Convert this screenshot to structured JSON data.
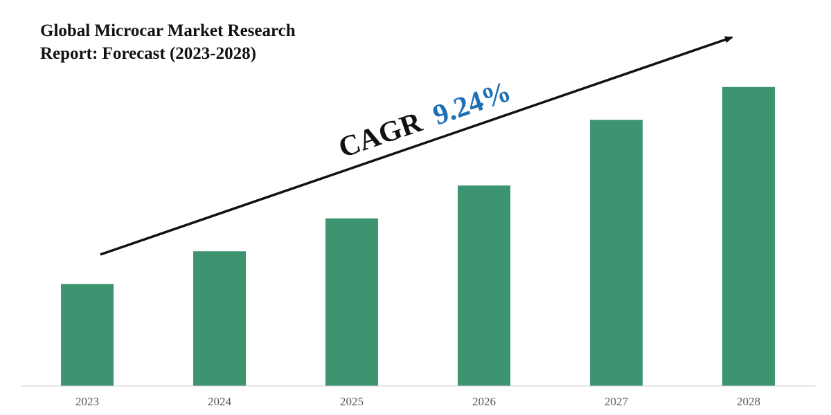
{
  "chart_data": {
    "type": "bar",
    "title": "Global Microcar Market Research Report: Forecast (2023-2028)",
    "categories": [
      "2023",
      "2024",
      "2025",
      "2026",
      "2027",
      "2028"
    ],
    "values": [
      31,
      41,
      51,
      61,
      81,
      91
    ],
    "ylim": [
      0,
      100
    ],
    "xlabel": "",
    "ylabel": "",
    "grid": false,
    "annotation": {
      "prefix": "CAGR",
      "value": "9.24%"
    },
    "colors": {
      "bar": "#3d9470",
      "cagr_value": "#1f6fb5",
      "cagr_prefix": "#111111",
      "arrow": "#111111",
      "axis": "#cccccc"
    }
  }
}
